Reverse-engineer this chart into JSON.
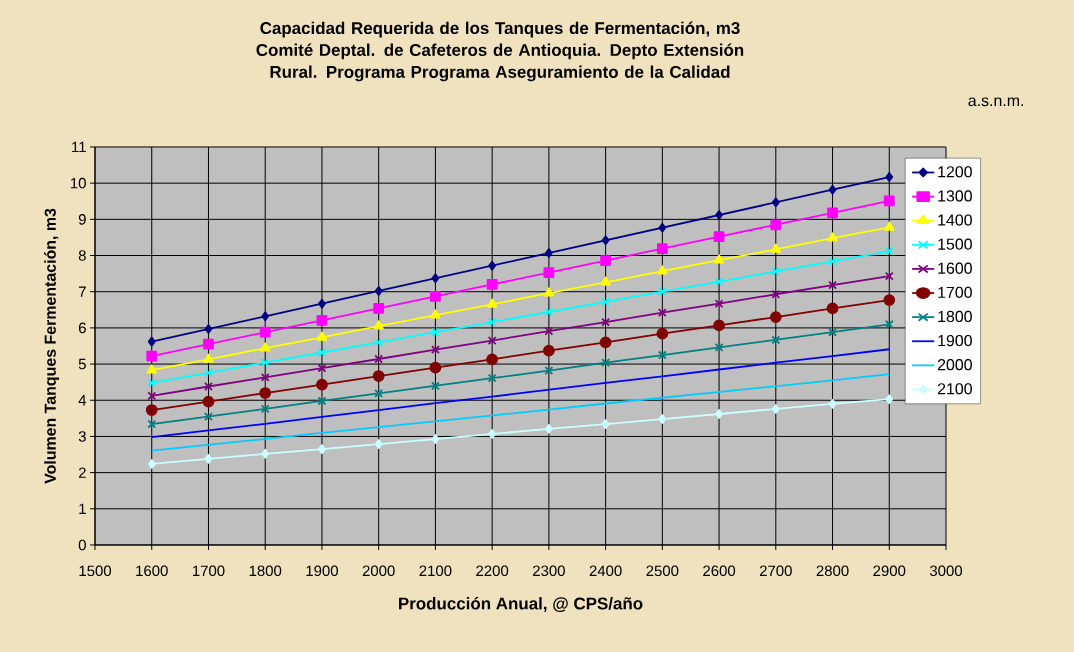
{
  "chart_data": {
    "type": "line",
    "title": "Capacidad Requerida de los Tanques de Fermentación, m3",
    "subtitle": "Comité Deptal. de Cafeteros de Antioquia. Depto Extensión Rural. Programa Programa Aseguramiento de la Calidad",
    "xlabel": "Producción Anual, @ CPS/año",
    "ylabel": "Volumen Tanques Fermentación, m3",
    "legend_title": "a.s.n.m.",
    "x": [
      1600,
      1700,
      1800,
      1900,
      2000,
      2100,
      2200,
      2300,
      2400,
      2500,
      2600,
      2700,
      2800,
      2900
    ],
    "xlim": [
      1500,
      3000
    ],
    "xticks": [
      1500,
      1600,
      1700,
      1800,
      1900,
      2000,
      2100,
      2200,
      2300,
      2400,
      2500,
      2600,
      2700,
      2800,
      2900,
      3000
    ],
    "ylim": [
      0,
      11
    ],
    "yticks": [
      0,
      1,
      2,
      3,
      4,
      5,
      6,
      7,
      8,
      9,
      10,
      11
    ],
    "grid": true,
    "legend": "right",
    "line_style": "solid",
    "series": [
      {
        "name": "1200",
        "color": "#000080",
        "marker": "diamond",
        "values": [
          5.62,
          5.97,
          6.32,
          6.67,
          7.02,
          7.37,
          7.72,
          8.07,
          8.42,
          8.77,
          9.12,
          9.47,
          9.82,
          10.17
        ]
      },
      {
        "name": "1300",
        "color": "#ff00ff",
        "marker": "square",
        "values": [
          5.22,
          5.55,
          5.88,
          6.21,
          6.54,
          6.87,
          7.2,
          7.53,
          7.86,
          8.19,
          8.52,
          8.85,
          9.18,
          9.51
        ]
      },
      {
        "name": "1400",
        "color": "#ffff00",
        "marker": "triangle",
        "values": [
          4.83,
          5.13,
          5.44,
          5.74,
          6.05,
          6.35,
          6.65,
          6.96,
          7.26,
          7.57,
          7.87,
          8.17,
          8.48,
          8.78
        ]
      },
      {
        "name": "1500",
        "color": "#00ffff",
        "marker": "cross",
        "values": [
          4.48,
          4.76,
          5.04,
          5.32,
          5.6,
          5.88,
          6.16,
          6.44,
          6.72,
          7.0,
          7.28,
          7.56,
          7.84,
          8.12
        ]
      },
      {
        "name": "1600",
        "color": "#800080",
        "marker": "cross",
        "values": [
          4.12,
          4.38,
          4.63,
          4.89,
          5.14,
          5.4,
          5.65,
          5.91,
          6.16,
          6.42,
          6.67,
          6.93,
          7.18,
          7.43
        ]
      },
      {
        "name": "1700",
        "color": "#800000",
        "marker": "circle",
        "values": [
          3.73,
          3.96,
          4.2,
          4.43,
          4.67,
          4.9,
          5.13,
          5.37,
          5.6,
          5.84,
          6.07,
          6.3,
          6.54,
          6.77
        ]
      },
      {
        "name": "1800",
        "color": "#008080",
        "marker": "cross",
        "values": [
          3.34,
          3.55,
          3.76,
          3.98,
          4.19,
          4.4,
          4.61,
          4.82,
          5.04,
          5.25,
          5.46,
          5.67,
          5.88,
          6.1
        ]
      },
      {
        "name": "1900",
        "color": "#0000ff",
        "marker": "none",
        "values": [
          2.98,
          3.17,
          3.35,
          3.54,
          3.73,
          3.92,
          4.1,
          4.29,
          4.48,
          4.66,
          4.85,
          5.04,
          5.22,
          5.41
        ]
      },
      {
        "name": "2000",
        "color": "#00ccff",
        "marker": "none",
        "values": [
          2.61,
          2.77,
          2.93,
          3.1,
          3.26,
          3.42,
          3.58,
          3.74,
          3.91,
          4.07,
          4.23,
          4.39,
          4.55,
          4.72
        ]
      },
      {
        "name": "2100",
        "color": "#ccffff",
        "marker": "diamond",
        "values": [
          2.24,
          2.38,
          2.52,
          2.65,
          2.79,
          2.93,
          3.07,
          3.21,
          3.34,
          3.48,
          3.62,
          3.76,
          3.9,
          4.03
        ]
      }
    ]
  }
}
